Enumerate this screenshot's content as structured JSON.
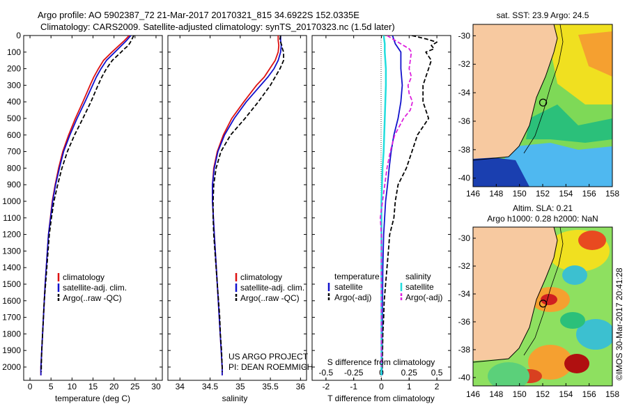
{
  "title": {
    "line1": "Argo profile: AO 5902387_72 21-Mar-2017 20170321_815 34.6922S 152.0335E",
    "line2": "Climatology: CARS2009. Satellite-adjusted climatology: synTS_20170323.nc (1.5d later)"
  },
  "depth_ticks": [
    "0",
    "100",
    "200",
    "300",
    "400",
    "500",
    "600",
    "700",
    "800",
    "900",
    "1000",
    "1100",
    "1200",
    "1300",
    "1400",
    "1500",
    "1600",
    "1700",
    "1800",
    "1900",
    "2000"
  ],
  "panels": {
    "temperature": {
      "xlabel": "temperature (deg C)",
      "ticks": [
        "0",
        "5",
        "10",
        "15",
        "20",
        "25",
        "30"
      ],
      "legend": [
        "climatology",
        "satellite-adj. clim.",
        "Argo(..raw -QC)"
      ]
    },
    "salinity": {
      "xlabel": "salinity",
      "ticks": [
        "34",
        "34.5",
        "35",
        "35.5",
        "36"
      ],
      "legend": [
        "climatology",
        "satellite-adj. clim.",
        "Argo(..raw -QC)"
      ],
      "credit1": "US ARGO PROJECT",
      "credit2": "PI: DEAN ROEMMICH"
    },
    "difference": {
      "xlabel": "T difference from climatology",
      "top_label": "S difference from climatology",
      "bottom_ticks": [
        "-2",
        "-1",
        "0",
        "1",
        "2"
      ],
      "top_ticks": [
        "-0.5",
        "-0.25",
        "0",
        "0.25",
        "0.5"
      ],
      "legend_temp_head": "temperature",
      "legend_sal_head": "salinity",
      "legend_temp": [
        "satellite",
        "Argo(-adj)"
      ],
      "legend_sal": [
        "satellite",
        "Argo(-adj)"
      ]
    }
  },
  "maps": {
    "sst": {
      "title": "sat. SST: 23.9 Argo: 24.5"
    },
    "sla": {
      "title1": "Altim. SLA: 0.21",
      "title2": "Argo h1000: 0.28 h2000: NaN"
    },
    "lat_ticks": [
      "-30",
      "-32",
      "-34",
      "-36",
      "-38",
      "-40"
    ],
    "lon_ticks": [
      "146",
      "148",
      "150",
      "152",
      "154",
      "156",
      "158"
    ],
    "float_lat": -34.6922,
    "float_lon": 152.0335
  },
  "stamp": "©IMOS 30-Mar-2017 20:41:28",
  "colors": {
    "climatology": "#dd1111",
    "satellite": "#1111cc",
    "argo": "#000000",
    "sal_satellite": "#22dddd",
    "sal_argo": "#dd22dd",
    "land": "#f7c9a0"
  },
  "chart_data": [
    {
      "type": "line",
      "name": "temperature",
      "title": "",
      "xlabel": "temperature (deg C)",
      "ylabel": "",
      "xlim": [
        -1.5,
        31.5
      ],
      "ylim": [
        2080,
        0
      ],
      "series": [
        {
          "name": "climatology",
          "depth": [
            0,
            30,
            60,
            100,
            150,
            200,
            250,
            300,
            400,
            500,
            600,
            700,
            800,
            900,
            1000,
            1200,
            1500,
            2000,
            2050
          ],
          "values": [
            23.6,
            22.5,
            21.2,
            19.5,
            17.5,
            16.3,
            15.2,
            14.3,
            12.6,
            10.8,
            9.2,
            7.8,
            6.8,
            6.0,
            5.3,
            4.4,
            3.6,
            2.6,
            2.6
          ]
        },
        {
          "name": "satellite-adj. clim.",
          "depth": [
            0,
            30,
            60,
            100,
            150,
            200,
            250,
            300,
            400,
            500,
            600,
            700,
            800,
            900,
            1000,
            1200,
            1500,
            2000,
            2050
          ],
          "values": [
            24.0,
            23.0,
            21.8,
            20.2,
            18.2,
            16.9,
            15.8,
            14.9,
            13.1,
            11.2,
            9.5,
            8.0,
            7.0,
            6.1,
            5.4,
            4.4,
            3.6,
            2.6,
            2.6
          ]
        },
        {
          "name": "Argo(..raw -QC)",
          "depth": [
            0,
            20,
            40,
            60,
            80,
            100,
            150,
            200,
            250,
            300,
            400,
            500,
            600,
            700,
            800,
            900,
            1000,
            1100,
            1200,
            1300,
            1400,
            1500,
            1600,
            1700,
            1800,
            1900,
            2000,
            2030
          ],
          "values": [
            24.7,
            24.3,
            23.9,
            23.4,
            22.5,
            21.7,
            19.6,
            18.2,
            17.1,
            16.2,
            14.5,
            12.6,
            10.6,
            8.9,
            7.6,
            6.6,
            5.7,
            5.1,
            4.6,
            4.3,
            4.0,
            3.7,
            3.4,
            3.2,
            3.0,
            2.8,
            2.7,
            2.7
          ]
        }
      ]
    },
    {
      "type": "line",
      "name": "salinity",
      "title": "",
      "xlabel": "salinity",
      "ylabel": "",
      "xlim": [
        33.8,
        36.1
      ],
      "ylim": [
        2080,
        0
      ],
      "series": [
        {
          "name": "climatology",
          "depth": [
            0,
            30,
            60,
            100,
            150,
            200,
            250,
            300,
            400,
            500,
            600,
            700,
            800,
            900,
            1000,
            1200,
            1500,
            2000,
            2050
          ],
          "values": [
            35.63,
            35.63,
            35.64,
            35.63,
            35.58,
            35.49,
            35.4,
            35.27,
            35.06,
            34.86,
            34.72,
            34.62,
            34.56,
            34.54,
            34.54,
            34.57,
            34.62,
            34.7,
            34.7
          ]
        },
        {
          "name": "satellite-adj. clim.",
          "depth": [
            0,
            30,
            60,
            100,
            150,
            200,
            250,
            300,
            400,
            500,
            600,
            700,
            800,
            900,
            1000,
            1200,
            1500,
            2000,
            2050
          ],
          "values": [
            35.67,
            35.67,
            35.68,
            35.67,
            35.63,
            35.56,
            35.46,
            35.34,
            35.1,
            34.9,
            34.74,
            34.63,
            34.57,
            34.54,
            34.54,
            34.57,
            34.62,
            34.7,
            34.7
          ]
        },
        {
          "name": "Argo(..raw -QC)",
          "depth": [
            0,
            20,
            40,
            60,
            80,
            100,
            150,
            200,
            250,
            300,
            400,
            500,
            600,
            700,
            800,
            900,
            1000,
            1100,
            1200,
            1300,
            1400,
            1500,
            1600,
            1700,
            1800,
            1900,
            2000,
            2030
          ],
          "values": [
            35.67,
            35.66,
            35.67,
            35.69,
            35.7,
            35.72,
            35.72,
            35.66,
            35.58,
            35.5,
            35.3,
            35.08,
            34.84,
            34.68,
            34.6,
            34.56,
            34.55,
            34.55,
            34.56,
            34.58,
            34.6,
            34.62,
            34.64,
            34.66,
            34.67,
            34.69,
            34.7,
            34.7
          ]
        }
      ]
    },
    {
      "type": "line",
      "name": "difference",
      "title": "",
      "xlabel": "T difference from climatology",
      "x2label": "S difference from climatology",
      "xlim": [
        -2.5,
        2.5
      ],
      "x2lim": [
        -0.625,
        0.625
      ],
      "ylim": [
        2080,
        0
      ],
      "series": [
        {
          "name": "temperature satellite",
          "axis": "T",
          "depth": [
            0,
            50,
            100,
            200,
            300,
            400,
            500,
            600,
            700,
            800,
            900,
            1000,
            1200,
            1400,
            1600,
            1800,
            2000,
            2050
          ],
          "values": [
            0.4,
            0.5,
            0.7,
            0.7,
            0.75,
            0.7,
            0.6,
            0.45,
            0.35,
            0.28,
            0.22,
            0.15,
            0.08,
            0.05,
            0.04,
            0.03,
            0.02,
            0.02
          ]
        },
        {
          "name": "temperature Argo(-adj)",
          "axis": "T",
          "depth": [
            0,
            20,
            40,
            60,
            80,
            100,
            150,
            200,
            250,
            300,
            400,
            500,
            600,
            700,
            800,
            900,
            1000,
            1100,
            1200,
            1300,
            1400,
            1500,
            1600,
            1700,
            1800,
            1900,
            2000,
            2030
          ],
          "values": [
            1.1,
            1.6,
            2.0,
            1.8,
            1.9,
            1.6,
            1.8,
            1.7,
            1.6,
            1.5,
            1.5,
            1.7,
            1.3,
            1.1,
            0.9,
            0.6,
            0.5,
            0.45,
            0.3,
            0.25,
            0.2,
            0.15,
            0.1,
            0.08,
            0.05,
            0.04,
            0.03,
            0.03
          ]
        },
        {
          "name": "salinity satellite",
          "axis": "S",
          "depth": [
            0,
            50,
            100,
            200,
            300,
            400,
            500,
            600,
            700,
            800,
            900,
            1000,
            1200,
            1500,
            2000,
            2050
          ],
          "values": [
            0.02,
            0.03,
            0.03,
            0.04,
            0.04,
            0.035,
            0.03,
            0.025,
            0.02,
            0.01,
            0.005,
            0.0,
            0.0,
            0.0,
            0.0,
            0.0
          ]
        },
        {
          "name": "salinity Argo(-adj)",
          "axis": "S",
          "depth": [
            0,
            20,
            40,
            60,
            80,
            100,
            150,
            200,
            250,
            300,
            350,
            400,
            450,
            500,
            600,
            700,
            800,
            900,
            1000,
            1100,
            1200,
            1500,
            2000
          ],
          "values": [
            0.05,
            0.1,
            0.15,
            0.2,
            0.25,
            0.27,
            0.26,
            0.25,
            0.27,
            0.24,
            0.25,
            0.28,
            0.26,
            0.2,
            0.12,
            0.08,
            0.05,
            0.03,
            0.01,
            -0.01,
            0.0,
            0.0,
            0.0
          ]
        }
      ]
    }
  ]
}
